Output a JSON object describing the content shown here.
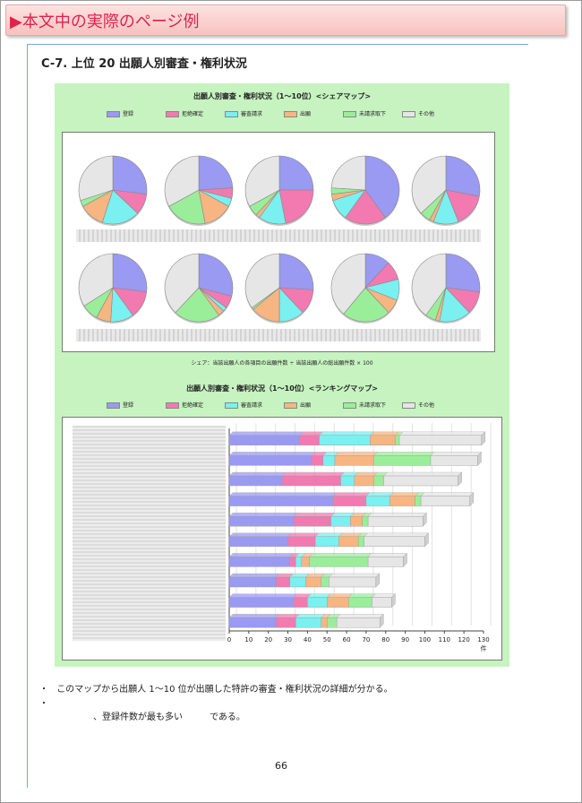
{
  "banner": {
    "title": "▶本文中の実際のページ例"
  },
  "section": {
    "title": "C-7.  上位 20 出願人別審査・権利状況"
  },
  "share_map": {
    "title": "出願人別審査・権利状況（1～10位）<シェアマップ>",
    "note": "シェア：当該出願人の各項目の出願件数 ÷ 当該出願人の総出願件数 × 100"
  },
  "ranking_map": {
    "title": "出願人別審査・権利状況（1～10位）<ランキングマップ>",
    "x_unit": "件"
  },
  "legend": [
    {
      "label": "登録",
      "color": "#9a9af2"
    },
    {
      "label": "拒絶確定",
      "color": "#f27ab0"
    },
    {
      "label": "審査請求",
      "color": "#7af0f0"
    },
    {
      "label": "出願",
      "color": "#f7b582"
    },
    {
      "label": "未請求取下",
      "color": "#9aee9a"
    },
    {
      "label": "その他",
      "color": "#e6e6e6"
    }
  ],
  "chart_data": [
    {
      "type": "pie",
      "title": "出願人別審査・権利状況（1～10位）<シェアマップ>",
      "series_labels": [
        "登録",
        "拒絶確定",
        "審査請求",
        "出願",
        "未請求取下",
        "その他"
      ],
      "pies": [
        [
          27,
          10,
          18,
          12,
          3,
          30
        ],
        [
          24,
          5,
          4,
          14,
          20,
          33
        ],
        [
          25,
          22,
          13,
          2,
          5,
          33
        ],
        [
          40,
          20,
          10,
          3,
          3,
          24
        ],
        [
          28,
          16,
          12,
          2,
          5,
          37
        ],
        [
          27,
          13,
          11,
          7,
          8,
          34
        ],
        [
          29,
          6,
          2,
          3,
          22,
          38
        ],
        [
          26,
          12,
          12,
          14,
          1,
          35
        ],
        [
          12,
          9,
          10,
          7,
          23,
          39
        ],
        [
          27,
          11,
          15,
          2,
          5,
          40
        ]
      ]
    },
    {
      "type": "bar",
      "title": "出願人別審査・権利状況（1～10位）<ランキングマップ>",
      "stacked": true,
      "orientation": "horizontal",
      "x_ticks": [
        0,
        10,
        20,
        30,
        40,
        50,
        60,
        70,
        80,
        90,
        100,
        110,
        120,
        130
      ],
      "xlim": [
        0,
        130
      ],
      "xlabel": "件",
      "series": [
        {
          "name": "登録",
          "values": [
            36,
            42,
            27,
            53,
            33,
            30,
            31,
            24,
            33,
            24
          ]
        },
        {
          "name": "拒絶確定",
          "values": [
            10,
            6,
            30,
            17,
            19,
            14,
            3,
            7,
            7,
            10
          ]
        },
        {
          "name": "審査請求",
          "values": [
            26,
            6,
            7,
            12,
            10,
            12,
            3,
            8,
            10,
            13
          ]
        },
        {
          "name": "出願",
          "values": [
            13,
            20,
            10,
            13,
            6,
            10,
            4,
            8,
            11,
            3
          ]
        },
        {
          "name": "未請求取下",
          "values": [
            2,
            29,
            5,
            3,
            3,
            3,
            30,
            4,
            12,
            5
          ]
        },
        {
          "name": "その他",
          "values": [
            42,
            24,
            38,
            25,
            28,
            31,
            18,
            24,
            10,
            22
          ]
        }
      ]
    }
  ],
  "bullets": [
    "このマップから出願人 1～10 位が出願した特許の審査・権利状況の詳細が分かる。",
    "、登録件数が最も多い　　　である。"
  ],
  "page_number": "66"
}
